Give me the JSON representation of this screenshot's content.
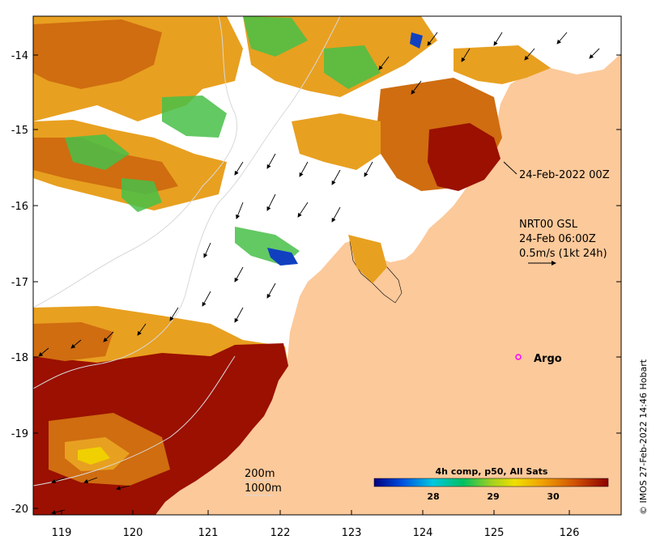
{
  "map": {
    "x_ticks": [
      "119",
      "120",
      "121",
      "122",
      "123",
      "124",
      "125",
      "126"
    ],
    "y_ticks": [
      "-14",
      "-15",
      "-16",
      "-17",
      "-18",
      "-19",
      "-20"
    ],
    "lon_range": [
      118.6,
      126.75
    ],
    "lat_range": [
      -20.2,
      -13.55
    ]
  },
  "annotations": {
    "date_label": "24-Feb-2022 00Z",
    "current_product": "NRT00 GSL",
    "current_time": "24-Feb 06:00Z",
    "current_scale": "0.5m/s (1kt 24h)",
    "argo_label": "Argo",
    "contour_200": "200m",
    "contour_1000": "1000m"
  },
  "colorbar": {
    "title": "4h comp, p50, All Sats",
    "ticks": [
      "28",
      "29",
      "30"
    ],
    "gradient": [
      "#000080",
      "#0050e0",
      "#00c8e0",
      "#00c060",
      "#a0d020",
      "#f0e000",
      "#f0a000",
      "#d05000",
      "#8b0000"
    ]
  },
  "credit": "© IMOS 27-Feb-2022 14:46 Hobart",
  "colors": {
    "land": "#fcc99a",
    "hot": "#9b1000",
    "warm": "#cf6d10",
    "mild": "#e8a020",
    "cool": "#48c048",
    "cold": "#1040c0",
    "argo": "#ff00ff"
  }
}
